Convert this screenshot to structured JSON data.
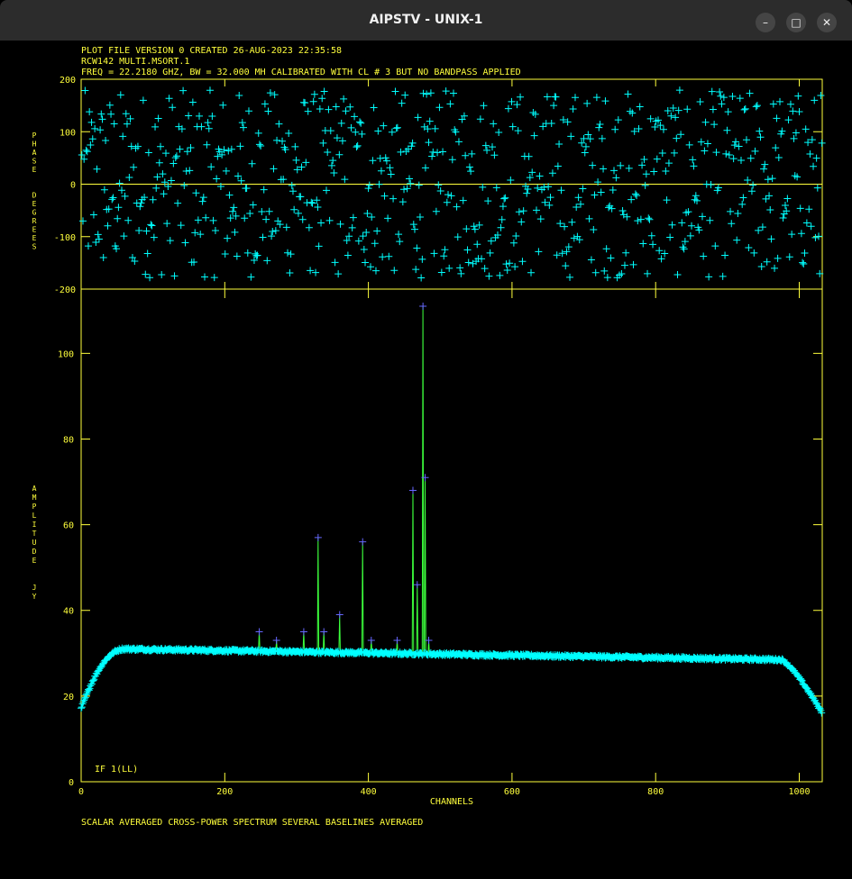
{
  "window": {
    "title": "AIPSTV - UNIX-1",
    "minimize_glyph": "–",
    "maximize_glyph": "□",
    "close_glyph": "✕"
  },
  "header": {
    "line1": "PLOT FILE VERSION 0  CREATED 26-AUG-2023 22:35:58",
    "line2": "RCW142   MULTI.MSORT.1",
    "line3": "FREQ = 22.2180 GHZ, BW = 32.000 MH   CALIBRATED WITH CL # 3 BUT NO BANDPASS APPLIED"
  },
  "footer": "SCALAR AVERAGED CROSS-POWER SPECTRUM    SEVERAL BASELINES AVERAGED",
  "if_label": "IF 1(LL)",
  "colors": {
    "axes": "#ffff3c",
    "points": "#00ffff",
    "line": "#3cff3c",
    "peak_marks": "#6666ff",
    "background": "#000000"
  },
  "chart_data": [
    {
      "type": "scatter",
      "ylabel": "PHASE DEGREES",
      "ylim": [
        -200,
        200
      ],
      "xlim": [
        0,
        1032
      ],
      "yticks": [
        "200",
        "100",
        "0",
        "-100",
        "-200"
      ],
      "description_of_values": "random phases uniformly distributed between -180 and 180 degrees, one per channel sample",
      "reference_line": 0
    },
    {
      "type": "line",
      "xlabel": "CHANNELS",
      "ylabel": "AMPLITUDE JY",
      "ylim": [
        0,
        115
      ],
      "xlim": [
        0,
        1032
      ],
      "xticks": [
        "0",
        "200",
        "400",
        "600",
        "800",
        "1000"
      ],
      "yticks": [
        "100",
        "80",
        "60",
        "40",
        "20",
        "0"
      ],
      "baseline": {
        "edge_low": 17,
        "plateau_start": 31,
        "plateau_end": 28.5,
        "edge_high": 16
      },
      "peaks": [
        {
          "channel": 248,
          "value": 35
        },
        {
          "channel": 272,
          "value": 33
        },
        {
          "channel": 310,
          "value": 35
        },
        {
          "channel": 330,
          "value": 57
        },
        {
          "channel": 338,
          "value": 35
        },
        {
          "channel": 360,
          "value": 39
        },
        {
          "channel": 392,
          "value": 56
        },
        {
          "channel": 404,
          "value": 33
        },
        {
          "channel": 440,
          "value": 33
        },
        {
          "channel": 462,
          "value": 68
        },
        {
          "channel": 468,
          "value": 46
        },
        {
          "channel": 476,
          "value": 111
        },
        {
          "channel": 479,
          "value": 71
        },
        {
          "channel": 484,
          "value": 33
        }
      ]
    }
  ]
}
